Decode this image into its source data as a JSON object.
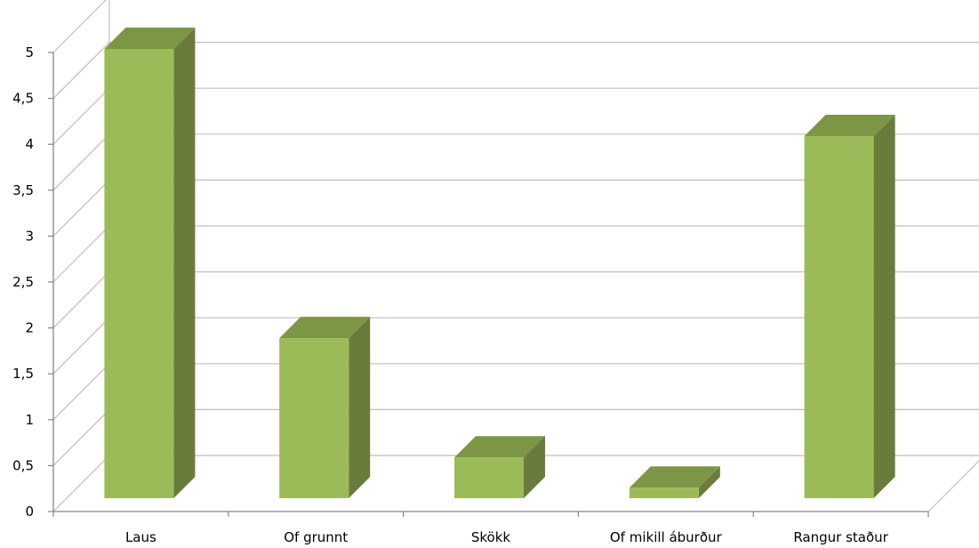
{
  "chart_data": {
    "type": "bar",
    "categories": [
      "Laus",
      "Of grunnt",
      "Skökk",
      "Of mikill áburður",
      "Rangur staður"
    ],
    "values": [
      5,
      1.85,
      0.55,
      0.22,
      4.05
    ],
    "title": "",
    "xlabel": "",
    "ylabel": "",
    "ylim": [
      0,
      5.5
    ],
    "yticks": [
      "0",
      "0,5",
      "1",
      "1,5",
      "2",
      "2,5",
      "3",
      "3,5",
      "4",
      "4,5",
      "5"
    ],
    "ytick_values": [
      0,
      0.5,
      1,
      1.5,
      2,
      2.5,
      3,
      3.5,
      4,
      4.5,
      5
    ],
    "style": "3d-column",
    "grid": true,
    "colors": {
      "front": "#9bbb59",
      "side": "#6a7c3b",
      "top": "#7d9645",
      "grid": "#bfbfbf",
      "axis": "#868686"
    }
  }
}
